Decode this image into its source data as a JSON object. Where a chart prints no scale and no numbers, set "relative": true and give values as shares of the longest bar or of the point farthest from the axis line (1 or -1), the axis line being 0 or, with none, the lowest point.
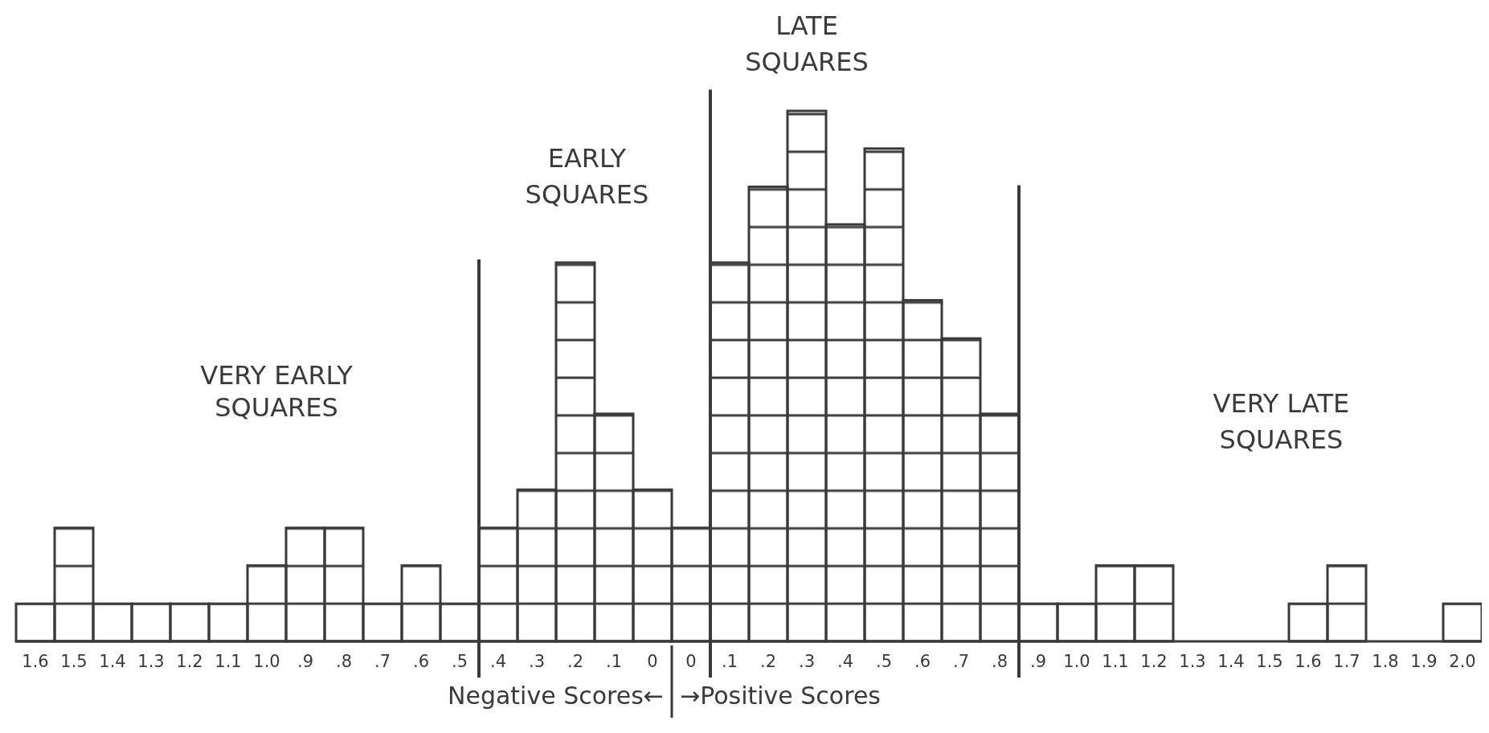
{
  "chart_data": {
    "type": "bar",
    "color": "#3a3a3a",
    "categories": [
      "1.6",
      "1.5",
      "1.4",
      "1.3",
      "1.2",
      "1.1",
      "1.0",
      ".9",
      ".8",
      ".7",
      ".6",
      ".5",
      ".4",
      ".3",
      ".2",
      ".1",
      "0",
      "0",
      ".1",
      ".2",
      ".3",
      ".4",
      ".5",
      ".6",
      ".7",
      ".8",
      ".9",
      "1.0",
      "1.1",
      "1.2",
      "1.3",
      "1.4",
      "1.5",
      "1.6",
      "1.7",
      "1.8",
      "1.9",
      "2.0"
    ],
    "values": [
      0.071,
      0.214,
      0.071,
      0.071,
      0.071,
      0.071,
      0.143,
      0.214,
      0.214,
      0.071,
      0.143,
      0.071,
      0.214,
      0.286,
      0.714,
      0.429,
      0.286,
      0.214,
      0.714,
      0.857,
      1,
      0.786,
      0.929,
      0.643,
      0.571,
      0.429,
      0.071,
      0.071,
      0.143,
      0.143,
      0,
      0,
      0,
      0.071,
      0.143,
      0,
      0,
      0.071
    ],
    "annotations": [
      "VERY EARLY SQUARES",
      "EARLY SQUARES",
      "LATE SQUARES",
      "VERY LATE SQUARES",
      "Negative Scores←",
      "→Positive Scores"
    ],
    "relative": true
  }
}
